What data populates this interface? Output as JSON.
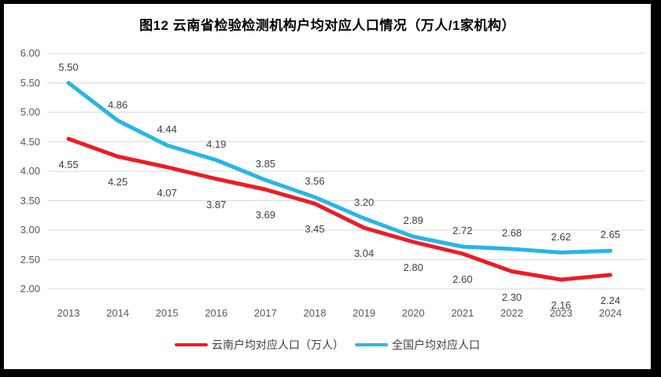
{
  "title": "图12  云南省检验检测机构户均对应人口情况（万人/1家机构）",
  "colors": {
    "yunnan_red": "#ed1c24",
    "national_blue": "#29b5e6",
    "gridline": "#d9d9d9",
    "data_label_text": "#3f3f3f",
    "axis_text": "#595959",
    "frame_border": "#000000",
    "background": "#ffffff"
  },
  "chart_data": {
    "type": "line",
    "title": "图12  云南省检验检测机构户均对应人口情况（万人/1家机构）",
    "categories": [
      "2013",
      "2014",
      "2015",
      "2016",
      "2017",
      "2018",
      "2019",
      "2020",
      "2021",
      "2022",
      "2023",
      "2024"
    ],
    "series": [
      {
        "name": "云南户均对应人口（万人）",
        "color": "#ed1c24",
        "values": [
          4.55,
          4.25,
          4.07,
          3.87,
          3.69,
          3.45,
          3.04,
          2.8,
          2.6,
          2.3,
          2.16,
          2.24
        ],
        "label_position": "below"
      },
      {
        "name": "全国户均对应人口",
        "color": "#29b5e6",
        "values": [
          5.5,
          4.86,
          4.44,
          4.19,
          3.85,
          3.56,
          3.2,
          2.89,
          2.72,
          2.68,
          2.62,
          2.65
        ],
        "label_position": "above"
      }
    ],
    "ylim": [
      2.0,
      6.0
    ],
    "ytick_step": 0.5,
    "ytick_labels": [
      "6.00",
      "5.50",
      "5.00",
      "4.50",
      "4.00",
      "3.50",
      "3.00",
      "2.50",
      "2.00"
    ],
    "grid": true,
    "legend_position": "bottom",
    "data_labels_shown": true
  }
}
